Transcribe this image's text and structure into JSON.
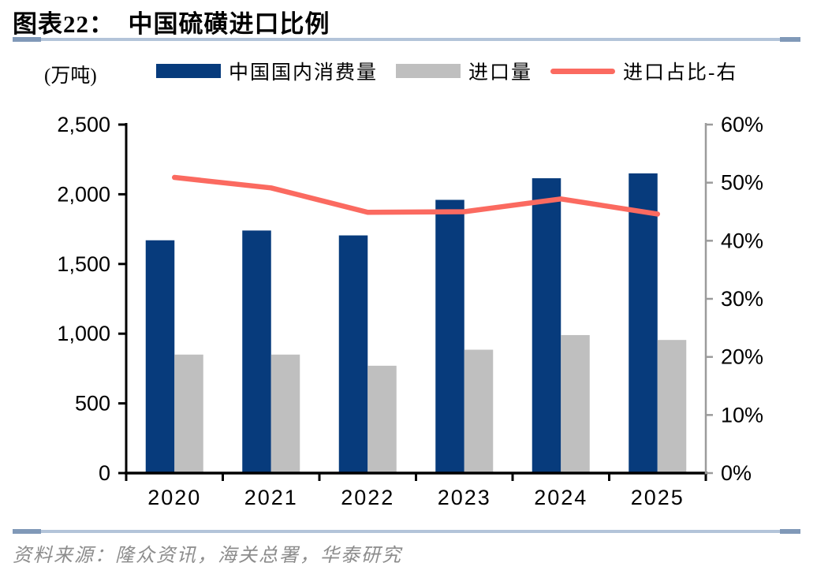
{
  "page": {
    "title": "图表22：  中国硫磺进口比例",
    "source": "资料来源：隆众资讯，海关总署，华泰研究"
  },
  "legend": {
    "unit": "(万吨)",
    "items": [
      {
        "label": "中国国内消费量",
        "marker": "swatch",
        "color": "#073b7c"
      },
      {
        "label": "进口量",
        "marker": "swatch",
        "color": "#bfbfbf"
      },
      {
        "label": "进口占比-右",
        "marker": "line",
        "color": "#fb6a60"
      }
    ]
  },
  "chart_data": {
    "type": "bar",
    "title": "中国硫磺进口比例",
    "categories": [
      "2020",
      "2021",
      "2022",
      "2023",
      "2024",
      "2025"
    ],
    "series": [
      {
        "name": "中国国内消费量",
        "type": "bar",
        "axis": "left",
        "color": "#073b7c",
        "values": [
          1670,
          1740,
          1705,
          1960,
          2115,
          2150
        ]
      },
      {
        "name": "进口量",
        "type": "bar",
        "axis": "left",
        "color": "#bfbfbf",
        "values": [
          850,
          850,
          770,
          885,
          990,
          955
        ]
      },
      {
        "name": "进口占比-右",
        "type": "line",
        "axis": "right",
        "color": "#fb6a60",
        "values": [
          50.9,
          49.1,
          44.9,
          45.0,
          47.2,
          44.6
        ]
      }
    ],
    "left_axis": {
      "label": "(万吨)",
      "min": 0,
      "max": 2500,
      "step": 500,
      "tick_labels": [
        "0",
        "500",
        "1,000",
        "1,500",
        "2,000",
        "2,500"
      ]
    },
    "right_axis": {
      "min": 0,
      "max": 60,
      "step": 10,
      "tick_labels": [
        "0%",
        "10%",
        "20%",
        "30%",
        "40%",
        "50%",
        "60%"
      ]
    },
    "grid": false,
    "legend_position": "top"
  },
  "colors": {
    "axis_left": "#000000",
    "axis_right": "#9b9b9b",
    "tick_text": "#000000",
    "rule": "#b3c4d9",
    "rule_cap": "#8099b8"
  }
}
